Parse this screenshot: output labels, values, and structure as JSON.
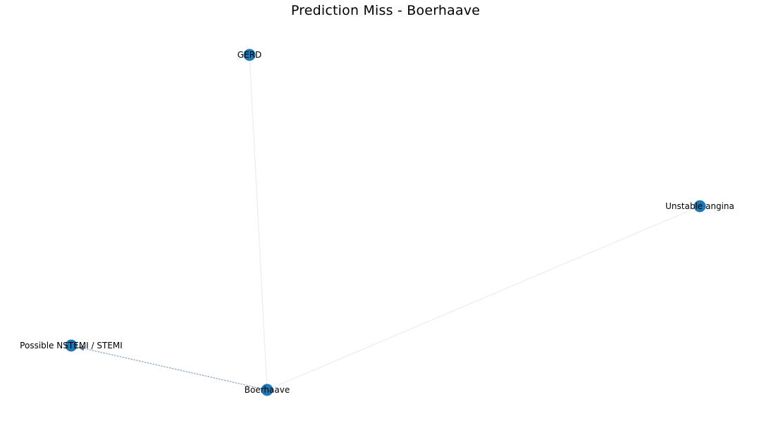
{
  "title": "Prediction Miss - Boerhaave",
  "colors": {
    "node": "#1f77b4",
    "edge_light": "#e9edf2",
    "edge_highlight": "#8fa6c2",
    "arrow": "#4a6080"
  },
  "nodes": [
    {
      "id": "gerd",
      "label": "GERD"
    },
    {
      "id": "unstable-angina",
      "label": "Unstable angina"
    },
    {
      "id": "nstemi-stemi",
      "label": "Possible NSTEMI / STEMI"
    },
    {
      "id": "boerhaave",
      "label": "Boerhaave"
    }
  ],
  "edges": [
    {
      "from": "boerhaave",
      "to": "gerd",
      "style": "light"
    },
    {
      "from": "boerhaave",
      "to": "unstable-angina",
      "style": "light"
    },
    {
      "from": "boerhaave",
      "to": "nstemi-stemi",
      "style": "highlight",
      "directed": true
    }
  ]
}
